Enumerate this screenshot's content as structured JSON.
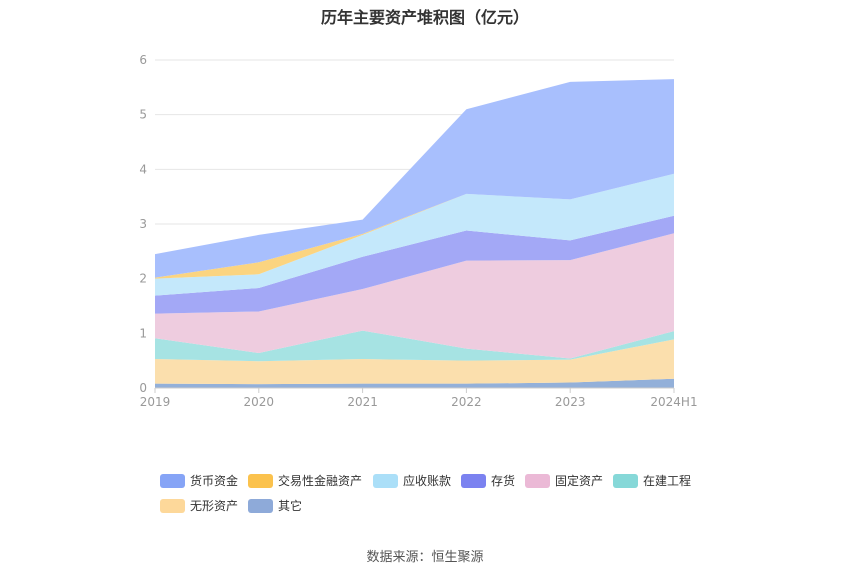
{
  "chart_data": {
    "type": "area",
    "stacked": true,
    "title": "历年主要资产堆积图（亿元）",
    "categories": [
      "2019",
      "2020",
      "2021",
      "2022",
      "2023",
      "2024H1"
    ],
    "ylim": [
      0,
      6
    ],
    "yticks": [
      "0",
      "1",
      "2",
      "3",
      "4",
      "5",
      "6"
    ],
    "grid": true,
    "legend_position": "bottom",
    "series": [
      {
        "name": "其它",
        "color": "#93b0d9",
        "values": [
          0.08,
          0.07,
          0.08,
          0.08,
          0.1,
          0.17
        ]
      },
      {
        "name": "无形资产",
        "color": "#fbdfad",
        "values": [
          0.45,
          0.42,
          0.45,
          0.42,
          0.42,
          0.72
        ]
      },
      {
        "name": "在建工程",
        "color": "#a6e3e3",
        "values": [
          0.38,
          0.15,
          0.52,
          0.22,
          0.02,
          0.15
        ]
      },
      {
        "name": "固定资产",
        "color": "#eeccdf",
        "values": [
          0.45,
          0.76,
          0.76,
          1.61,
          1.8,
          1.79
        ]
      },
      {
        "name": "存货",
        "color": "#a3a8f6",
        "values": [
          0.33,
          0.43,
          0.59,
          0.55,
          0.36,
          0.32
        ]
      },
      {
        "name": "应收账款",
        "color": "#c4e8fb",
        "values": [
          0.31,
          0.25,
          0.4,
          0.67,
          0.75,
          0.77
        ]
      },
      {
        "name": "交易性金融资产",
        "color": "#fbd480",
        "values": [
          0.02,
          0.22,
          0.02,
          0.0,
          0.0,
          0.0
        ]
      },
      {
        "name": "货币资金",
        "color": "#a8bffd",
        "values": [
          0.43,
          0.5,
          0.26,
          1.55,
          2.15,
          1.73
        ]
      }
    ],
    "legend": [
      {
        "name": "货币资金",
        "color": "#86a4f6"
      },
      {
        "name": "交易性金融资产",
        "color": "#fbc24d"
      },
      {
        "name": "应收账款",
        "color": "#abdff8"
      },
      {
        "name": "存货",
        "color": "#7b82f0"
      },
      {
        "name": "固定资产",
        "color": "#ebb9d6"
      },
      {
        "name": "在建工程",
        "color": "#86d8d8"
      },
      {
        "name": "无形资产",
        "color": "#fdd89a"
      },
      {
        "name": "其它",
        "color": "#8eaad9"
      }
    ]
  },
  "source": "数据来源：恒生聚源"
}
